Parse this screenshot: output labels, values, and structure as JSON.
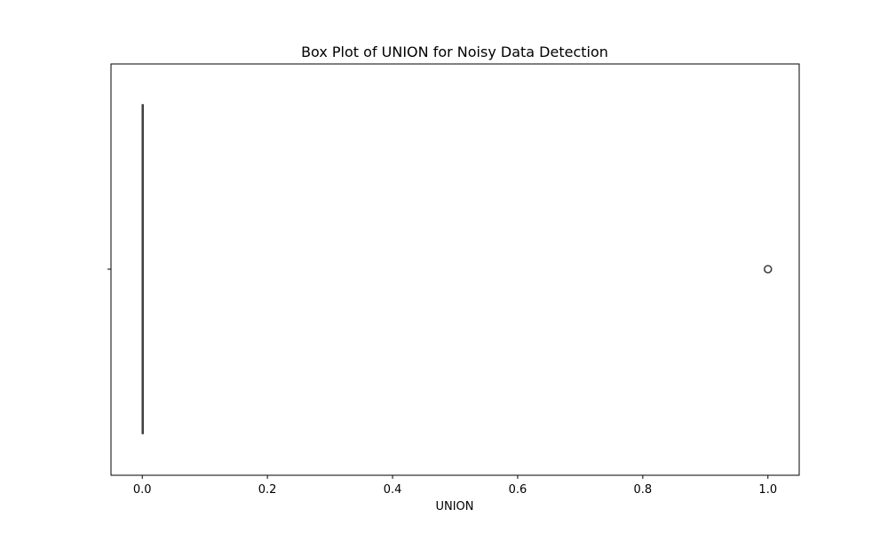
{
  "chart_data": {
    "type": "box",
    "title": "Box Plot of UNION for Noisy Data Detection",
    "xlabel": "UNION",
    "ylabel": "",
    "orientation": "horizontal",
    "xlim": [
      -0.05,
      1.05
    ],
    "xticks": [
      0.0,
      0.2,
      0.4,
      0.6,
      0.8,
      1.0
    ],
    "xtick_labels": [
      "0.0",
      "0.2",
      "0.4",
      "0.6",
      "0.8",
      "1.0"
    ],
    "grid": false,
    "box": {
      "min": 0.0,
      "q1": 0.0,
      "median": 0.0,
      "q3": 0.0,
      "max": 0.0,
      "outliers": [
        1.0
      ]
    },
    "colors": {
      "box_line": "#3f3f3f",
      "outlier_edge": "#3f3f3f",
      "axes": "#000000"
    }
  }
}
